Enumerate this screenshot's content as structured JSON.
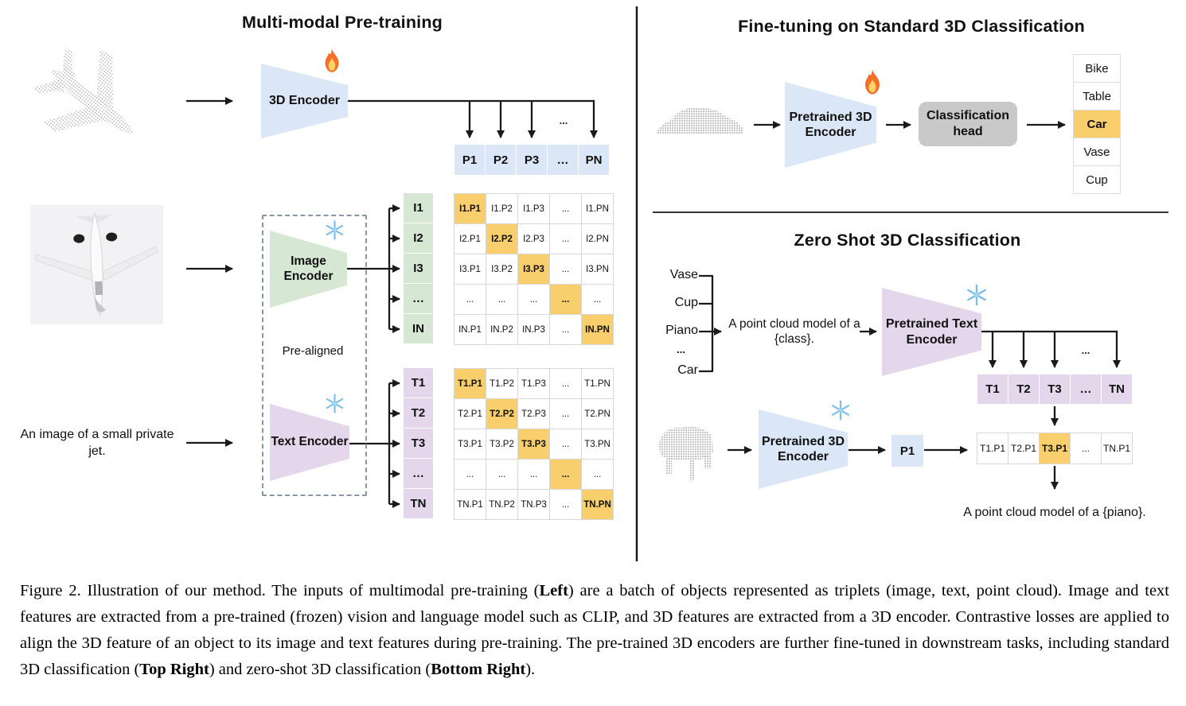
{
  "panels": {
    "pretrain": {
      "title": "Multi-modal Pre-training",
      "input_caption": "An image of a small private jet.",
      "encoder3d": {
        "label": "3D Encoder",
        "status_icon": "fire-icon"
      },
      "image_encoder": {
        "label": "Image Encoder",
        "status_icon": "snowflake-icon"
      },
      "text_encoder": {
        "label": "Text Encoder",
        "status_icon": "snowflake-icon"
      },
      "prealigned_label": "Pre-aligned",
      "ellipsis": "...",
      "p_row": [
        "P1",
        "P2",
        "P3",
        "…",
        "PN"
      ],
      "i_rows": [
        "I1",
        "I2",
        "I3",
        "…",
        "IN"
      ],
      "t_rows": [
        "T1",
        "T2",
        "T3",
        "…",
        "TN"
      ],
      "i_matrix": {
        "highlight": "diagonal",
        "rows": [
          [
            "I1.P1",
            "I1.P2",
            "I1.P3",
            "...",
            "I1.PN"
          ],
          [
            "I2.P1",
            "I2.P2",
            "I2.P3",
            "...",
            "I2.PN"
          ],
          [
            "I3.P1",
            "I3.P2",
            "I3.P3",
            "...",
            "I3.PN"
          ],
          [
            "...",
            "...",
            "...",
            "...",
            "..."
          ],
          [
            "IN.P1",
            "IN.P2",
            "IN.P3",
            "...",
            "IN.PN"
          ]
        ]
      },
      "t_matrix": {
        "highlight": "diagonal",
        "rows": [
          [
            "T1.P1",
            "T1.P2",
            "T1.P3",
            "...",
            "T1.PN"
          ],
          [
            "T2.P1",
            "T2.P2",
            "T2.P3",
            "...",
            "T2.PN"
          ],
          [
            "T3.P1",
            "T3.P2",
            "T3.P3",
            "...",
            "T3.PN"
          ],
          [
            "...",
            "...",
            "...",
            "...",
            "..."
          ],
          [
            "TN.P1",
            "TN.P2",
            "TN.P3",
            "...",
            "TN.PN"
          ]
        ]
      },
      "figures": {
        "point_cloud": "airplane-point-cloud",
        "image": "airplane-photo"
      }
    },
    "finetune": {
      "title": "Fine-tuning on Standard 3D Classification",
      "encoder": {
        "label": "Pretrained 3D Encoder",
        "status_icon": "fire-icon"
      },
      "head": {
        "label": "Classification head"
      },
      "classes": [
        "Bike",
        "Table",
        "Car",
        "Vase",
        "Cup"
      ],
      "predicted": "Car",
      "figures": {
        "point_cloud": "car-point-cloud"
      }
    },
    "zeroshot": {
      "title": "Zero Shot 3D Classification",
      "class_list": [
        "Vase",
        "Cup",
        "Piano",
        "...",
        "Car"
      ],
      "prompt": "A point cloud model of a {class}.",
      "text_encoder": {
        "label": "Pretrained Text Encoder",
        "status_icon": "snowflake-icon"
      },
      "encoder3d": {
        "label": "Pretrained 3D Encoder",
        "status_icon": "snowflake-icon"
      },
      "p_label": "P1",
      "ellipsis": "...",
      "t_row": [
        "T1",
        "T2",
        "T3",
        "…",
        "TN"
      ],
      "sim_row": {
        "cells": [
          "T1.P1",
          "T2.P1",
          "T3.P1",
          "...",
          "TN.P1"
        ],
        "highlight_index": 2
      },
      "result": "A point cloud model of a {piano}.",
      "figures": {
        "point_cloud": "piano-point-cloud"
      }
    }
  },
  "caption": {
    "segments": [
      {
        "text": "Figure 2. Illustration of our method. The inputs of multimodal pre-training (",
        "bold": false
      },
      {
        "text": "Left",
        "bold": true
      },
      {
        "text": ") are a batch of objects represented as triplets (image, text, point cloud). Image and text features are extracted from a pre-trained (frozen) vision and language model such as CLIP, and 3D features are extracted from a 3D encoder. Contrastive losses are applied to align the 3D feature of an object to its image and text features during pre-training. The pre-trained 3D encoders are further fine-tuned in downstream tasks, including standard 3D classification (",
        "bold": false
      },
      {
        "text": "Top Right",
        "bold": true
      },
      {
        "text": ") and zero-shot 3D classification (",
        "bold": false
      },
      {
        "text": "Bottom Right",
        "bold": true
      },
      {
        "text": ").",
        "bold": false
      }
    ]
  },
  "colors": {
    "blue": "#dbe7f6",
    "green": "#d6e8d4",
    "purple": "#e4d7ec",
    "orange": "#f9cf6d",
    "head_gray": "#c9c9c9",
    "line": "#1a1a1a"
  }
}
